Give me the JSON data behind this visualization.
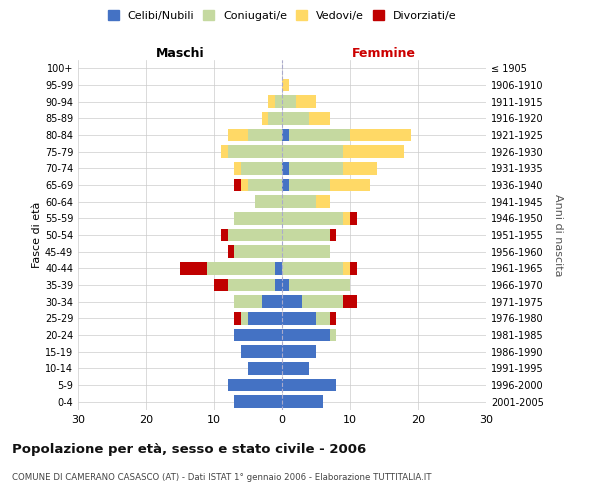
{
  "age_groups": [
    "100+",
    "95-99",
    "90-94",
    "85-89",
    "80-84",
    "75-79",
    "70-74",
    "65-69",
    "60-64",
    "55-59",
    "50-54",
    "45-49",
    "40-44",
    "35-39",
    "30-34",
    "25-29",
    "20-24",
    "15-19",
    "10-14",
    "5-9",
    "0-4"
  ],
  "birth_years": [
    "≤ 1905",
    "1906-1910",
    "1911-1915",
    "1916-1920",
    "1921-1925",
    "1926-1930",
    "1931-1935",
    "1936-1940",
    "1941-1945",
    "1946-1950",
    "1951-1955",
    "1956-1960",
    "1961-1965",
    "1966-1970",
    "1971-1975",
    "1976-1980",
    "1981-1985",
    "1986-1990",
    "1991-1995",
    "1996-2000",
    "2001-2005"
  ],
  "colors": {
    "celibi": "#4472c4",
    "coniugati": "#c5d9a0",
    "vedovi": "#ffd966",
    "divorziati": "#c00000"
  },
  "male": {
    "celibi": [
      0,
      0,
      0,
      0,
      0,
      0,
      0,
      0,
      0,
      0,
      0,
      0,
      1,
      1,
      3,
      5,
      7,
      6,
      5,
      8,
      7
    ],
    "coniugati": [
      0,
      0,
      1,
      2,
      5,
      8,
      6,
      5,
      4,
      7,
      8,
      7,
      10,
      7,
      4,
      1,
      0,
      0,
      0,
      0,
      0
    ],
    "vedovi": [
      0,
      0,
      1,
      1,
      3,
      1,
      1,
      1,
      0,
      0,
      0,
      0,
      0,
      0,
      0,
      0,
      0,
      0,
      0,
      0,
      0
    ],
    "divorziati": [
      0,
      0,
      0,
      0,
      0,
      0,
      0,
      1,
      0,
      0,
      1,
      1,
      4,
      2,
      0,
      1,
      0,
      0,
      0,
      0,
      0
    ]
  },
  "female": {
    "nubili": [
      0,
      0,
      0,
      0,
      1,
      0,
      1,
      1,
      0,
      0,
      0,
      0,
      0,
      1,
      3,
      5,
      7,
      5,
      4,
      8,
      6
    ],
    "coniugate": [
      0,
      0,
      2,
      4,
      9,
      9,
      8,
      6,
      5,
      9,
      7,
      7,
      9,
      9,
      6,
      2,
      1,
      0,
      0,
      0,
      0
    ],
    "vedove": [
      0,
      1,
      3,
      3,
      9,
      9,
      5,
      6,
      2,
      1,
      0,
      0,
      1,
      0,
      0,
      0,
      0,
      0,
      0,
      0,
      0
    ],
    "divorziate": [
      0,
      0,
      0,
      0,
      0,
      0,
      0,
      0,
      0,
      1,
      1,
      0,
      1,
      0,
      2,
      1,
      0,
      0,
      0,
      0,
      0
    ]
  },
  "xlim": 30,
  "title": "Popolazione per età, sesso e stato civile - 2006",
  "subtitle": "COMUNE DI CAMERANO CASASCO (AT) - Dati ISTAT 1° gennaio 2006 - Elaborazione TUTTITALIA.IT",
  "ylabel_left": "Fasce di età",
  "ylabel_right": "Anni di nascita",
  "label_maschi": "Maschi",
  "label_femmine": "Femmine",
  "legend_labels": [
    "Celibi/Nubili",
    "Coniugati/e",
    "Vedovi/e",
    "Divorziati/e"
  ],
  "bg_color": "#ffffff",
  "grid_color": "#cccccc",
  "xticks": [
    0,
    10,
    20,
    30
  ]
}
